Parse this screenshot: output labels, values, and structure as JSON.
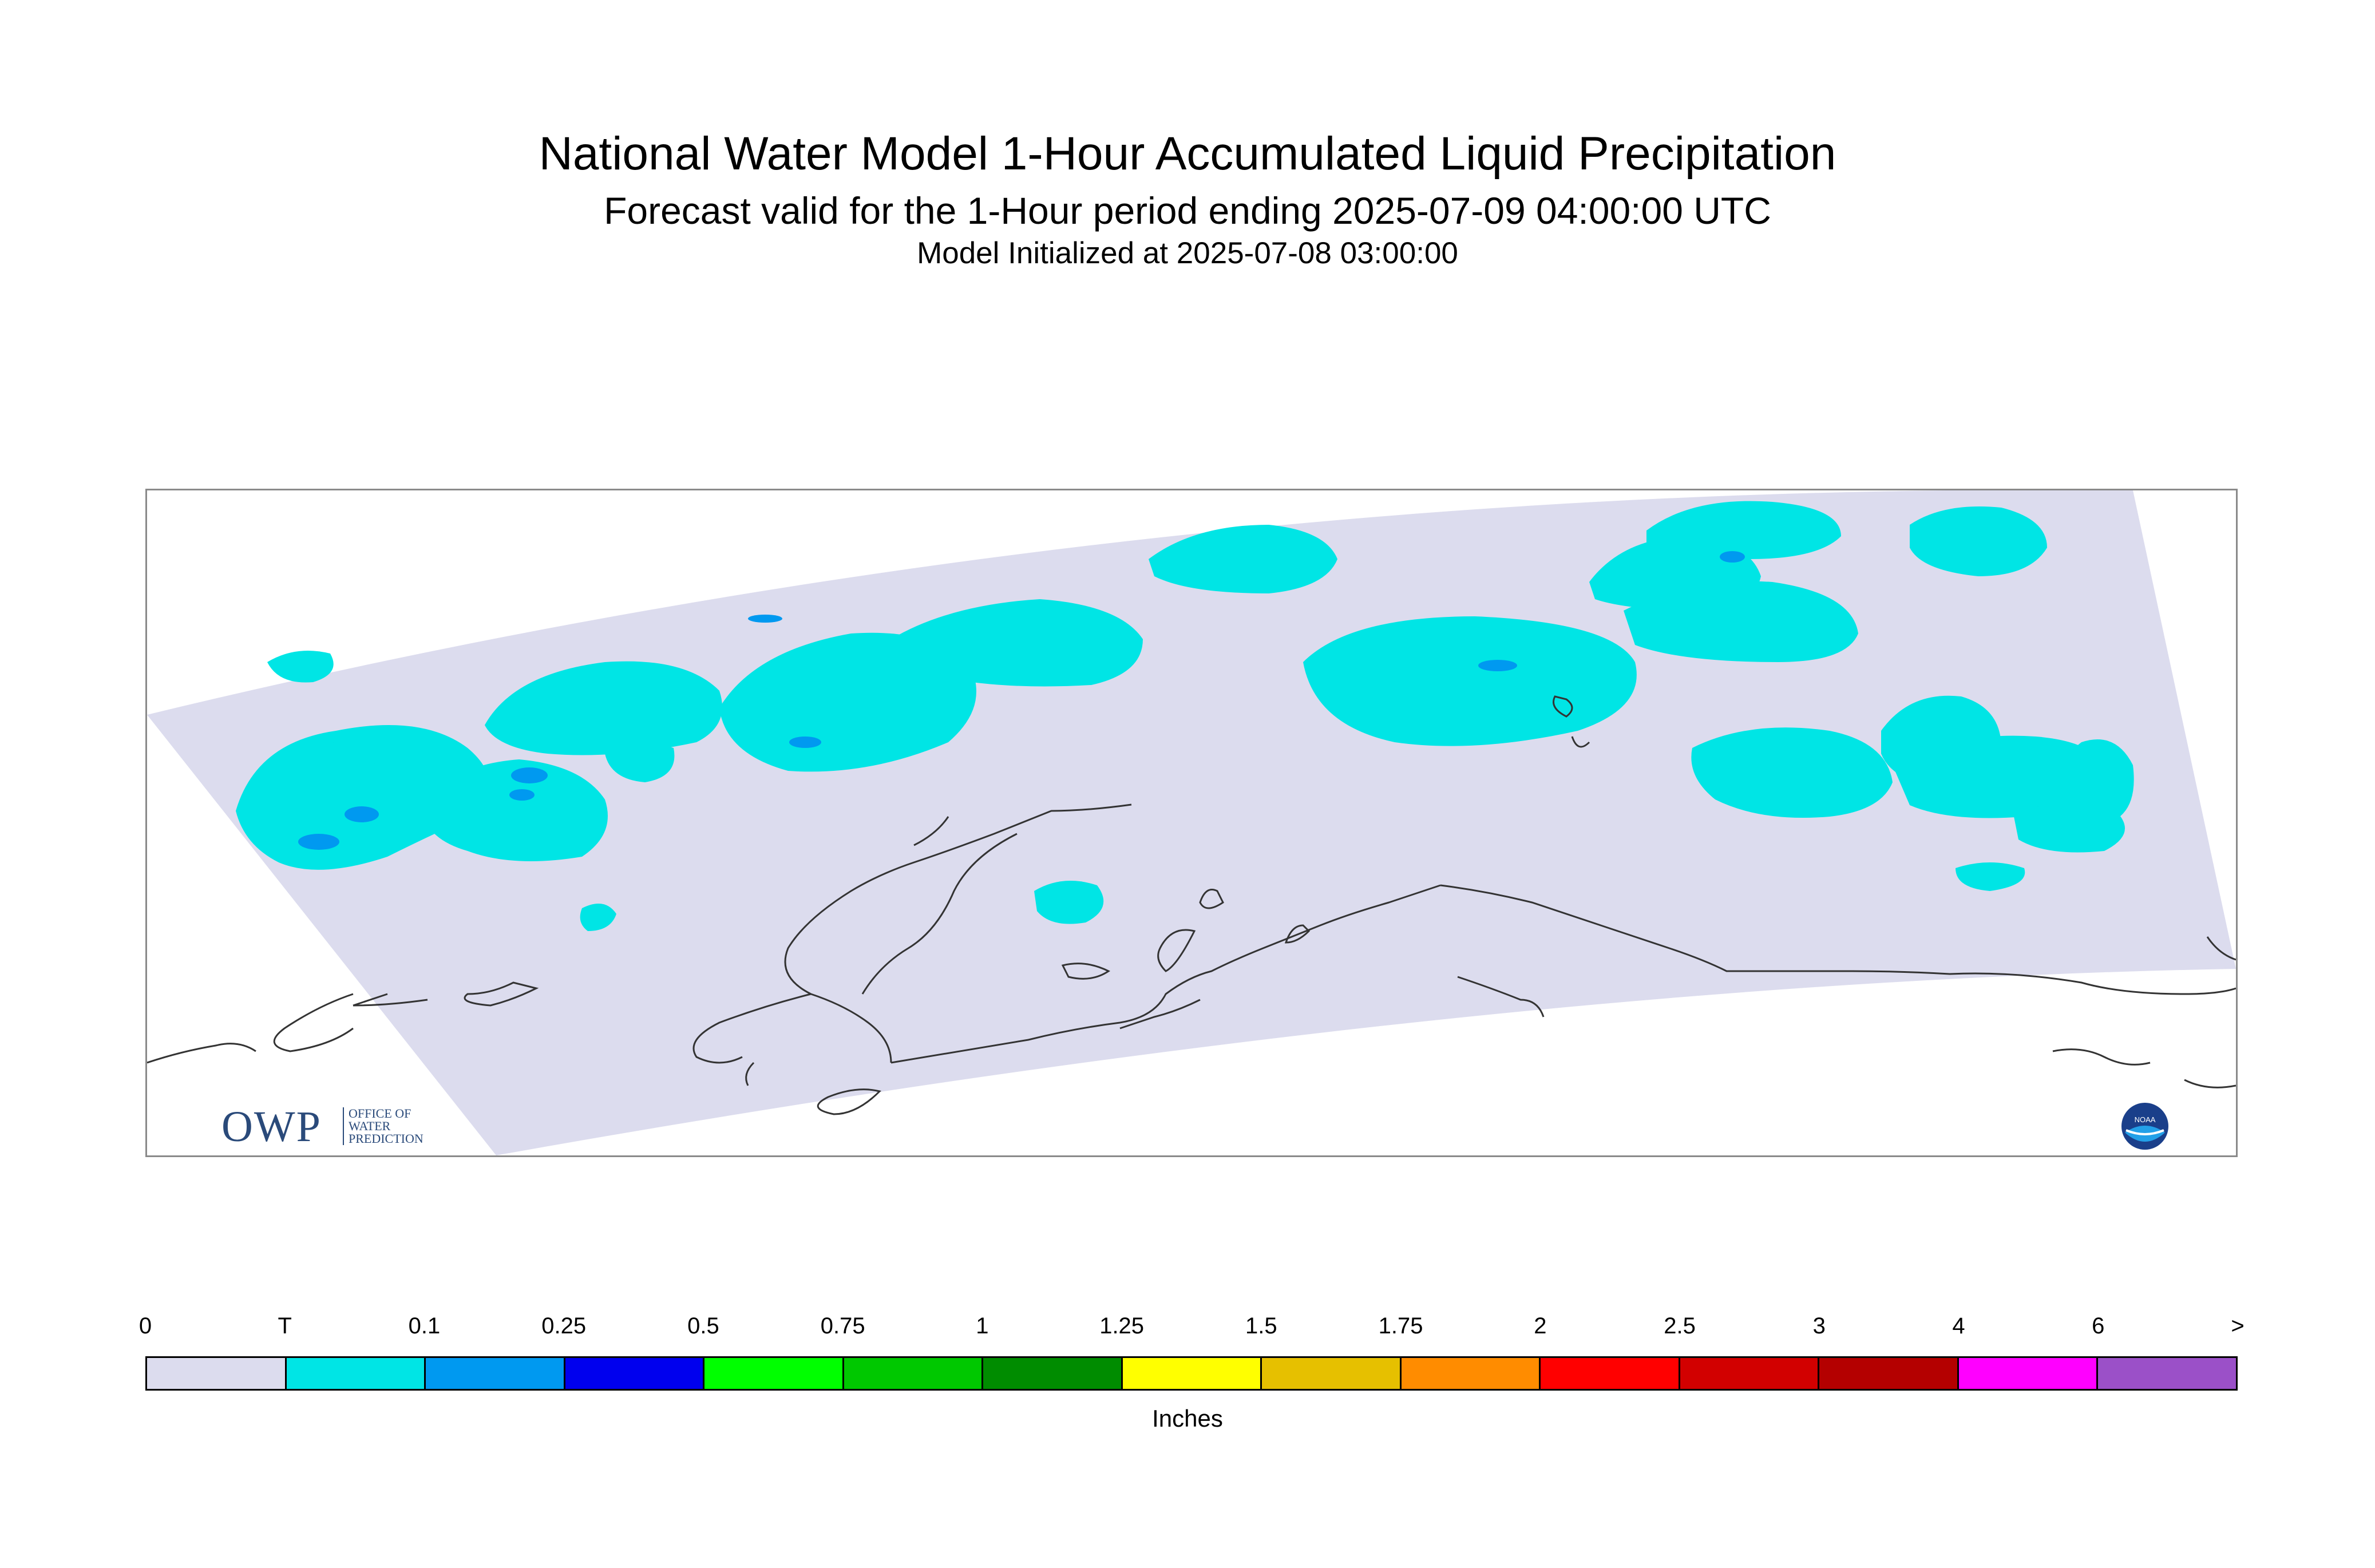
{
  "title": "National Water Model 1-Hour Accumulated Liquid Precipitation",
  "subtitle": "Forecast valid for the 1-Hour period ending 2025-07-09 04:00:00 UTC",
  "init_line": "Model Initialized at 2025-07-08 03:00:00",
  "logos": {
    "owp": {
      "big": "OWP",
      "lines": [
        "OFFICE OF",
        "WATER",
        "PREDICTION"
      ]
    },
    "noaa": {
      "text": "NOAA"
    }
  },
  "map": {
    "domain_fill": "#dcdcee",
    "precip_trace_color": "#00e5e5",
    "precip_light_color": "#0099f0",
    "coast_color": "#333333"
  },
  "legend": {
    "unit_label": "Inches",
    "labels": [
      "0",
      "T",
      "0.1",
      "0.25",
      "0.5",
      "0.75",
      "1",
      "1.25",
      "1.5",
      "1.75",
      "2",
      "2.5",
      "3",
      "4",
      "6",
      ">"
    ],
    "colors": [
      "#dcdcee",
      "#00e5e5",
      "#0099f0",
      "#0000ee",
      "#00ff00",
      "#00c800",
      "#008c00",
      "#ffff00",
      "#e6c000",
      "#ff8c00",
      "#ff0000",
      "#d20000",
      "#b40000",
      "#ff00ff",
      "#9b50c8"
    ]
  }
}
